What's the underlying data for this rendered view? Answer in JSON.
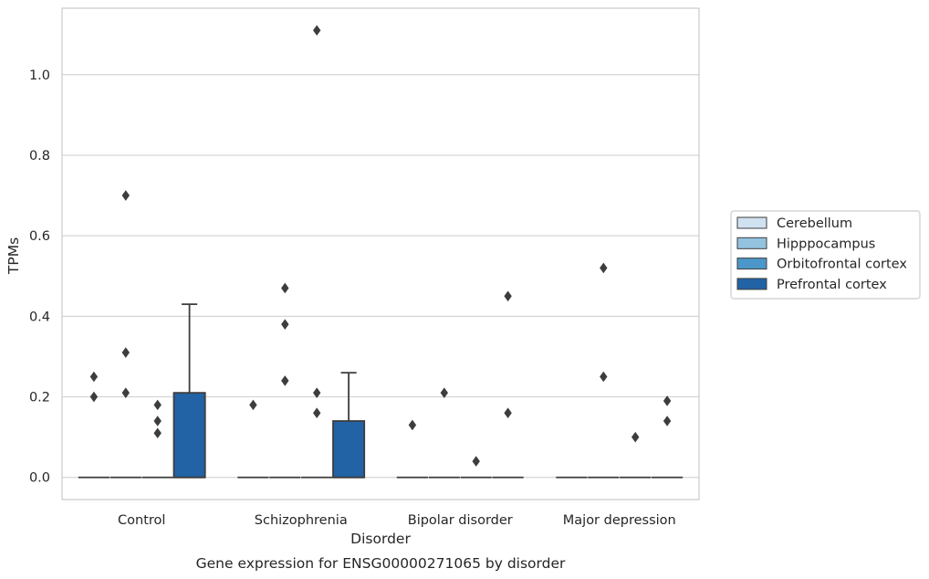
{
  "caption": "Gene expression for ENSG00000271065 by disorder",
  "colors": {
    "Cerebellum": "#d0e1f1",
    "Hipppocampus": "#93c3df",
    "Orbitofrontal cortex": "#4b97c9",
    "Prefrontal cortex": "#2163a5",
    "line": "#3d3d3d",
    "grid": "#d5d5d5",
    "frame": "#cccccc"
  },
  "chart_data": {
    "type": "box",
    "title": "",
    "xlabel": "Disorder",
    "ylabel": "TPMs",
    "ylim": [
      -0.055,
      1.165
    ],
    "yticks": [
      0.0,
      0.2,
      0.4,
      0.6,
      0.8,
      1.0
    ],
    "ytick_labels": [
      "0.0",
      "0.2",
      "0.4",
      "0.6",
      "0.8",
      "1.0"
    ],
    "categories": [
      "Control",
      "Schizophrenia",
      "Bipolar disorder",
      "Major depression"
    ],
    "grid": true,
    "legend_position": "right",
    "hue_order": [
      "Cerebellum",
      "Hipppocampus",
      "Orbitofrontal cortex",
      "Prefrontal cortex"
    ],
    "boxes": [
      {
        "category": "Control",
        "hue": "Cerebellum",
        "min": 0,
        "q1": 0,
        "median": 0,
        "q3": 0,
        "max": 0,
        "outliers": [
          0.25,
          0.2
        ]
      },
      {
        "category": "Control",
        "hue": "Hipppocampus",
        "min": 0,
        "q1": 0,
        "median": 0,
        "q3": 0,
        "max": 0,
        "outliers": [
          0.7,
          0.31,
          0.21
        ]
      },
      {
        "category": "Control",
        "hue": "Orbitofrontal cortex",
        "min": 0,
        "q1": 0,
        "median": 0,
        "q3": 0,
        "max": 0,
        "outliers": [
          0.18,
          0.14,
          0.11
        ]
      },
      {
        "category": "Control",
        "hue": "Prefrontal cortex",
        "min": 0,
        "q1": 0,
        "median": 0,
        "q3": 0.21,
        "max": 0.43,
        "outliers": []
      },
      {
        "category": "Schizophrenia",
        "hue": "Cerebellum",
        "min": 0,
        "q1": 0,
        "median": 0,
        "q3": 0,
        "max": 0,
        "outliers": [
          0.18
        ]
      },
      {
        "category": "Schizophrenia",
        "hue": "Hipppocampus",
        "min": 0,
        "q1": 0,
        "median": 0,
        "q3": 0,
        "max": 0,
        "outliers": [
          0.47,
          0.38,
          0.24
        ]
      },
      {
        "category": "Schizophrenia",
        "hue": "Orbitofrontal cortex",
        "min": 0,
        "q1": 0,
        "median": 0,
        "q3": 0,
        "max": 0,
        "outliers": [
          1.11,
          0.21,
          0.16
        ]
      },
      {
        "category": "Schizophrenia",
        "hue": "Prefrontal cortex",
        "min": 0,
        "q1": 0,
        "median": 0,
        "q3": 0.14,
        "max": 0.26,
        "outliers": []
      },
      {
        "category": "Bipolar disorder",
        "hue": "Cerebellum",
        "min": 0,
        "q1": 0,
        "median": 0,
        "q3": 0,
        "max": 0,
        "outliers": [
          0.13
        ]
      },
      {
        "category": "Bipolar disorder",
        "hue": "Hipppocampus",
        "min": 0,
        "q1": 0,
        "median": 0,
        "q3": 0,
        "max": 0,
        "outliers": [
          0.21
        ]
      },
      {
        "category": "Bipolar disorder",
        "hue": "Orbitofrontal cortex",
        "min": 0,
        "q1": 0,
        "median": 0,
        "q3": 0,
        "max": 0,
        "outliers": [
          0.04
        ]
      },
      {
        "category": "Bipolar disorder",
        "hue": "Prefrontal cortex",
        "min": 0,
        "q1": 0,
        "median": 0,
        "q3": 0,
        "max": 0,
        "outliers": [
          0.45,
          0.16
        ]
      },
      {
        "category": "Major depression",
        "hue": "Cerebellum",
        "min": 0,
        "q1": 0,
        "median": 0,
        "q3": 0,
        "max": 0,
        "outliers": []
      },
      {
        "category": "Major depression",
        "hue": "Hipppocampus",
        "min": 0,
        "q1": 0,
        "median": 0,
        "q3": 0,
        "max": 0,
        "outliers": [
          0.52,
          0.25
        ]
      },
      {
        "category": "Major depression",
        "hue": "Orbitofrontal cortex",
        "min": 0,
        "q1": 0,
        "median": 0,
        "q3": 0,
        "max": 0,
        "outliers": [
          0.1
        ]
      },
      {
        "category": "Major depression",
        "hue": "Prefrontal cortex",
        "min": 0,
        "q1": 0,
        "median": 0,
        "q3": 0,
        "max": 0,
        "outliers": [
          0.19,
          0.14
        ]
      }
    ]
  }
}
